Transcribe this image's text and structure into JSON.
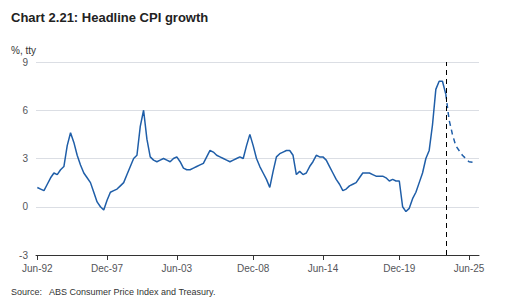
{
  "chart_data": {
    "type": "line",
    "title": "Chart 2.21: Headline CPI growth",
    "ylabel": "%, tty",
    "source": "Source:   ABS Consumer Price Index and Treasury.",
    "ylim": [
      -3,
      9
    ],
    "yticks": [
      -3,
      0,
      3,
      6,
      9
    ],
    "xlim": [
      1992.4,
      2025.75
    ],
    "xticks": [
      {
        "value": 1992.5,
        "label": "Jun-92"
      },
      {
        "value": 1997.75,
        "label": "Dec-97"
      },
      {
        "value": 2003.0,
        "label": "Jun-03"
      },
      {
        "value": 2008.75,
        "label": "Dec-08"
      },
      {
        "value": 2014.0,
        "label": "Jun-14"
      },
      {
        "value": 2019.75,
        "label": "Dec-19"
      },
      {
        "value": 2025.0,
        "label": "Jun-25"
      }
    ],
    "grid": true,
    "vline": 2023.25,
    "series": [
      {
        "color": "#1F5EA8",
        "line_style": "solid",
        "x": [
          1992.5,
          1992.75,
          1993.0,
          1993.25,
          1993.5,
          1993.75,
          1994.0,
          1994.25,
          1994.5,
          1994.75,
          1995.0,
          1995.25,
          1995.5,
          1995.75,
          1996.0,
          1996.25,
          1996.5,
          1996.75,
          1997.0,
          1997.25,
          1997.5,
          1997.75,
          1998.0,
          1998.25,
          1998.5,
          1998.75,
          1999.0,
          1999.25,
          1999.5,
          1999.75,
          2000.0,
          2000.25,
          2000.5,
          2000.75,
          2001.0,
          2001.25,
          2001.5,
          2001.75,
          2002.0,
          2002.25,
          2002.5,
          2002.75,
          2003.0,
          2003.25,
          2003.5,
          2003.75,
          2004.0,
          2004.25,
          2004.5,
          2004.75,
          2005.0,
          2005.25,
          2005.5,
          2005.75,
          2006.0,
          2006.25,
          2006.5,
          2006.75,
          2007.0,
          2007.25,
          2007.5,
          2007.75,
          2008.0,
          2008.25,
          2008.5,
          2008.75,
          2009.0,
          2009.25,
          2009.5,
          2009.75,
          2010.0,
          2010.25,
          2010.5,
          2010.75,
          2011.0,
          2011.25,
          2011.5,
          2011.75,
          2012.0,
          2012.25,
          2012.5,
          2012.75,
          2013.0,
          2013.25,
          2013.5,
          2013.75,
          2014.0,
          2014.25,
          2014.5,
          2014.75,
          2015.0,
          2015.25,
          2015.5,
          2015.75,
          2016.0,
          2016.25,
          2016.5,
          2016.75,
          2017.0,
          2017.25,
          2017.5,
          2017.75,
          2018.0,
          2018.25,
          2018.5,
          2018.75,
          2019.0,
          2019.25,
          2019.5,
          2019.75,
          2020.0,
          2020.25,
          2020.5,
          2020.75,
          2021.0,
          2021.25,
          2021.5,
          2021.75,
          2022.0,
          2022.25,
          2022.5,
          2022.75,
          2023.0,
          2023.25
        ],
        "values": [
          1.2,
          1.1,
          1.0,
          1.4,
          1.8,
          2.1,
          2.0,
          2.3,
          2.5,
          3.8,
          4.6,
          4.0,
          3.2,
          2.6,
          2.1,
          1.8,
          1.5,
          0.9,
          0.3,
          0.0,
          -0.2,
          0.4,
          0.9,
          1.0,
          1.1,
          1.3,
          1.5,
          2.0,
          2.5,
          3.0,
          3.2,
          5.0,
          6.0,
          4.2,
          3.1,
          2.9,
          2.8,
          2.9,
          3.0,
          2.9,
          2.8,
          3.0,
          3.1,
          2.8,
          2.4,
          2.3,
          2.3,
          2.4,
          2.5,
          2.6,
          2.7,
          3.1,
          3.5,
          3.4,
          3.2,
          3.1,
          3.0,
          2.9,
          2.8,
          2.9,
          3.0,
          3.1,
          3.0,
          3.8,
          4.5,
          3.8,
          3.0,
          2.5,
          2.1,
          1.7,
          1.2,
          2.2,
          3.1,
          3.3,
          3.4,
          3.5,
          3.5,
          3.2,
          2.0,
          2.2,
          2.0,
          2.1,
          2.5,
          2.8,
          3.2,
          3.1,
          3.1,
          2.9,
          2.5,
          2.1,
          1.7,
          1.4,
          1.0,
          1.1,
          1.3,
          1.4,
          1.5,
          1.8,
          2.1,
          2.1,
          2.1,
          2.0,
          1.9,
          1.9,
          1.9,
          1.8,
          1.6,
          1.7,
          1.6,
          1.6,
          0.0,
          -0.3,
          -0.1,
          0.5,
          0.9,
          1.5,
          2.1,
          3.0,
          3.5,
          5.1,
          7.3,
          7.8,
          7.8,
          7.0
        ]
      },
      {
        "color": "#1F5EA8",
        "line_style": "dashed",
        "x": [
          2023.25,
          2023.5,
          2023.75,
          2024.0,
          2024.25,
          2024.5,
          2024.75,
          2025.0,
          2025.5
        ],
        "values": [
          7.0,
          5.4,
          4.5,
          3.8,
          3.5,
          3.2,
          3.0,
          2.8,
          2.75
        ]
      }
    ]
  }
}
